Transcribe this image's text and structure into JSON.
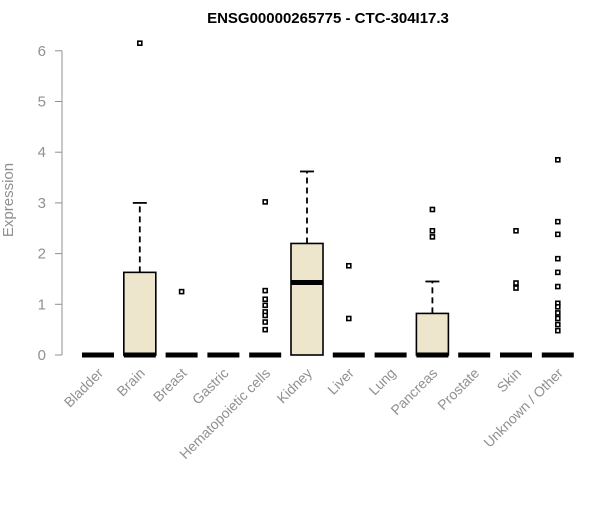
{
  "chart_data": {
    "type": "boxplot",
    "title": "ENSG00000265775 - CTC-304I17.3",
    "ylabel": "Expression",
    "xlabel": "",
    "ylim": [
      0,
      6.3
    ],
    "yticks": [
      0,
      1,
      2,
      3,
      4,
      5,
      6
    ],
    "grid": false,
    "box_fill": "#ede6cc",
    "categories": [
      "Bladder",
      "Brain",
      "Breast",
      "Gastric",
      "Hematopoietic cells",
      "Kidney",
      "Liver",
      "Lung",
      "Pancreas",
      "Prostate",
      "Skin",
      "Unknown / Other"
    ],
    "boxes": [
      {
        "q1": 0,
        "median": 0,
        "q3": 0,
        "whisker_low": 0,
        "whisker_high": 0,
        "outliers": []
      },
      {
        "q1": 0,
        "median": 0,
        "q3": 1.63,
        "whisker_low": 0,
        "whisker_high": 3.0,
        "outliers": [
          6.15
        ]
      },
      {
        "q1": 0,
        "median": 0,
        "q3": 0,
        "whisker_low": 0,
        "whisker_high": 0,
        "outliers": [
          1.25
        ]
      },
      {
        "q1": 0,
        "median": 0,
        "q3": 0,
        "whisker_low": 0,
        "whisker_high": 0,
        "outliers": []
      },
      {
        "q1": 0,
        "median": 0,
        "q3": 0,
        "whisker_low": 0,
        "whisker_high": 0,
        "outliers": [
          3.02,
          1.27,
          1.1,
          0.98,
          0.85,
          0.78,
          0.65,
          0.5
        ]
      },
      {
        "q1": 0,
        "median": 1.43,
        "q3": 2.2,
        "whisker_low": 0,
        "whisker_high": 3.62,
        "outliers": []
      },
      {
        "q1": 0,
        "median": 0,
        "q3": 0,
        "whisker_low": 0,
        "whisker_high": 0,
        "outliers": [
          1.76,
          0.72
        ]
      },
      {
        "q1": 0,
        "median": 0,
        "q3": 0,
        "whisker_low": 0,
        "whisker_high": 0,
        "outliers": []
      },
      {
        "q1": 0,
        "median": 0,
        "q3": 0.82,
        "whisker_low": 0,
        "whisker_high": 1.45,
        "outliers": [
          2.87,
          2.45,
          2.33
        ]
      },
      {
        "q1": 0,
        "median": 0,
        "q3": 0,
        "whisker_low": 0,
        "whisker_high": 0,
        "outliers": []
      },
      {
        "q1": 0,
        "median": 0,
        "q3": 0,
        "whisker_low": 0,
        "whisker_high": 0,
        "outliers": [
          2.45,
          1.42,
          1.32
        ]
      },
      {
        "q1": 0,
        "median": 0,
        "q3": 0,
        "whisker_low": 0,
        "whisker_high": 0,
        "outliers": [
          3.85,
          2.63,
          2.38,
          1.9,
          1.63,
          1.35,
          1.02,
          0.95,
          0.83,
          0.72,
          0.6,
          0.48
        ]
      }
    ]
  }
}
